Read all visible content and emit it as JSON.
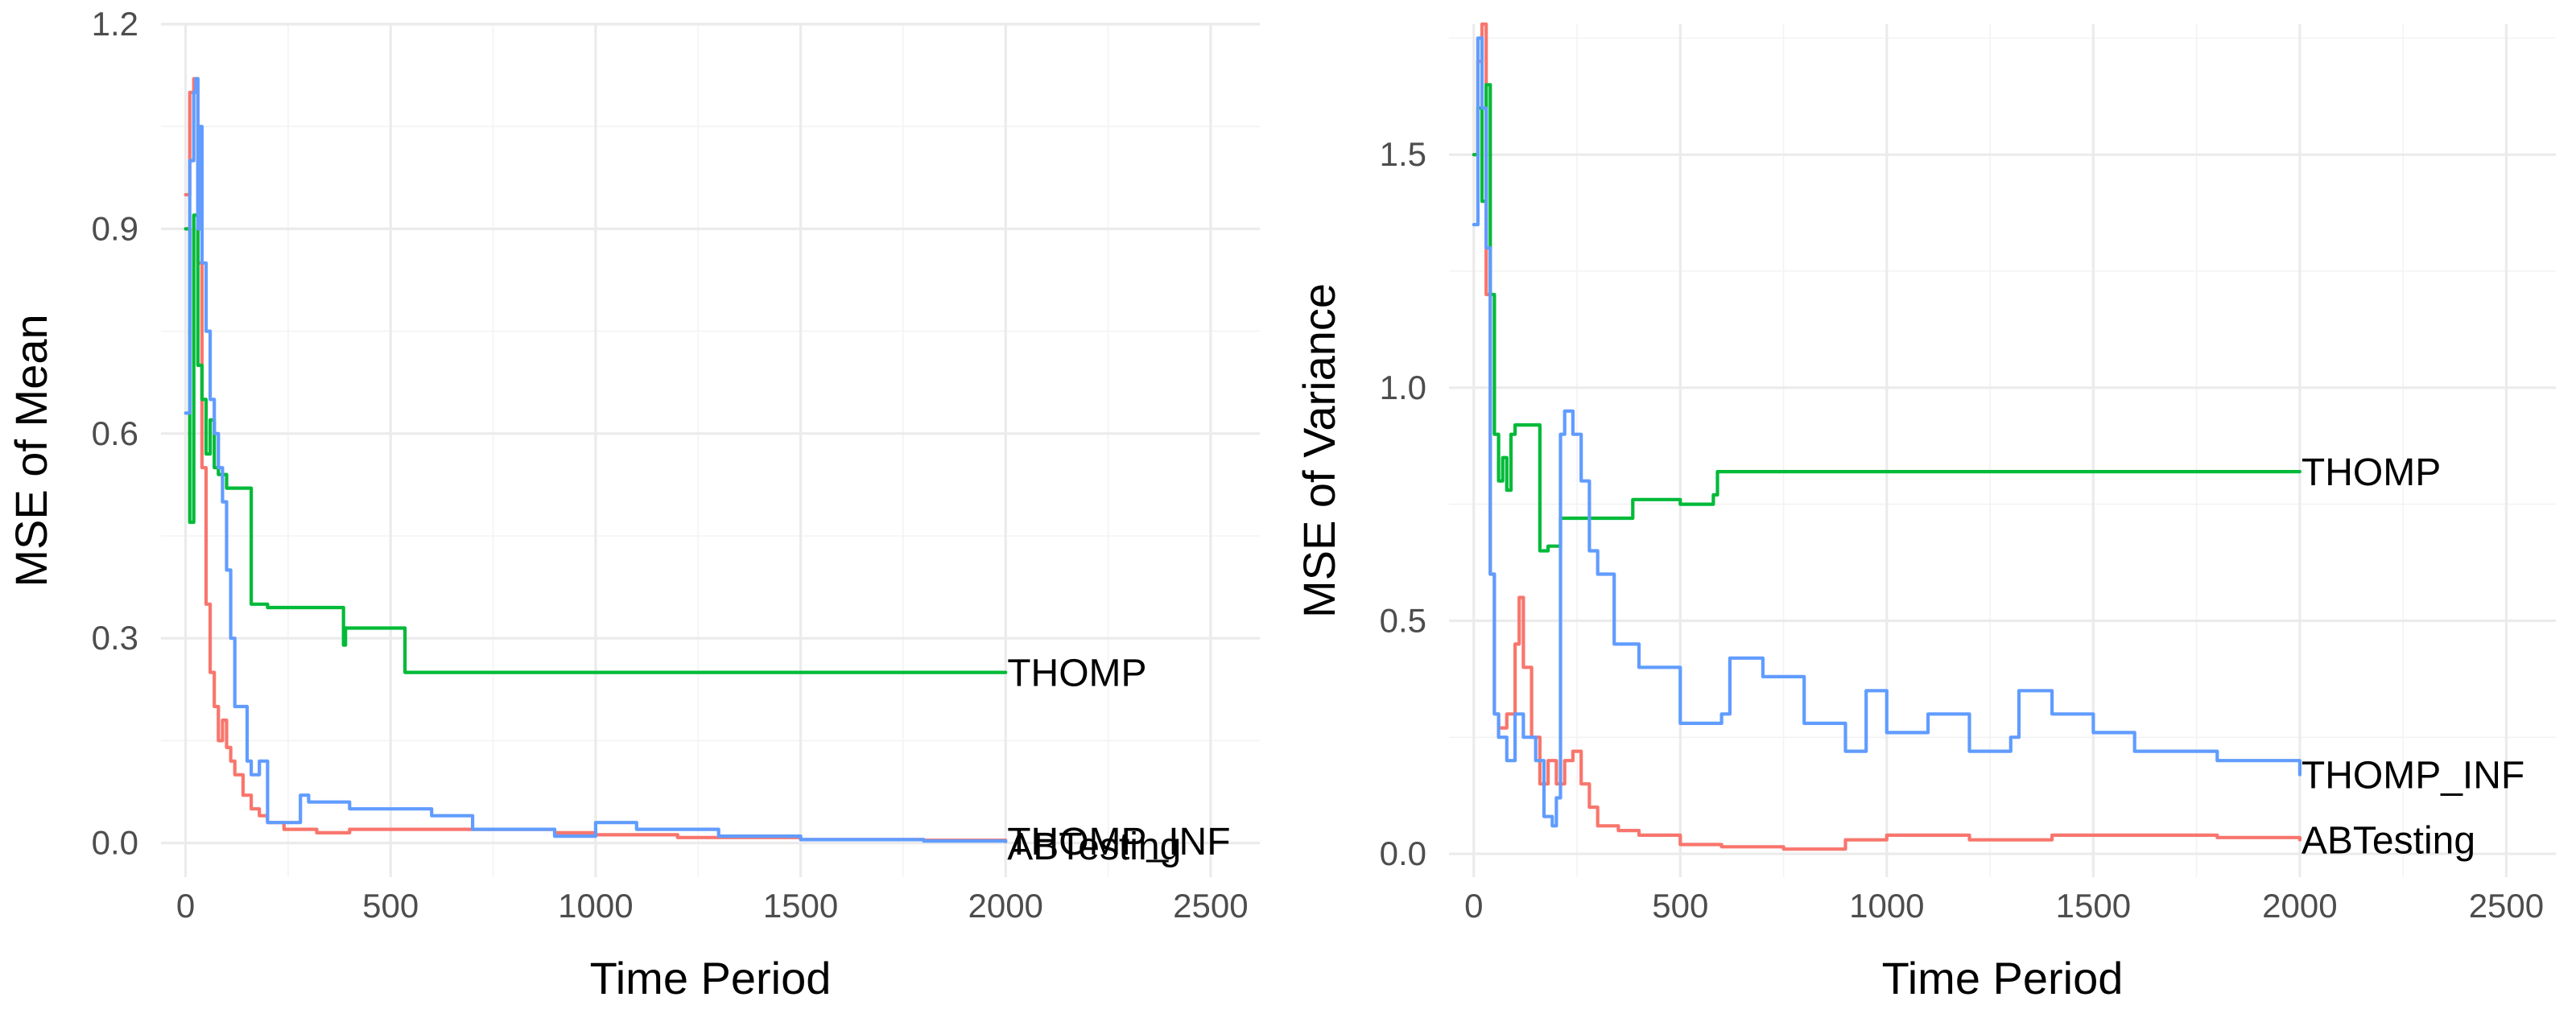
{
  "colors": {
    "ABTesting": "#f8766d",
    "THOMP": "#00ba38",
    "THOMP_INF": "#619cff"
  },
  "chart_data": [
    {
      "type": "line",
      "xlabel": "Time Period",
      "ylabel": "MSE of Mean",
      "xlim": [
        -60,
        2620
      ],
      "ylim": [
        -0.05,
        1.2
      ],
      "x_ticks": [
        0,
        500,
        1000,
        1500,
        2000,
        2500
      ],
      "y_ticks": [
        0.0,
        0.3,
        0.6,
        0.9,
        1.2
      ],
      "y_tick_labels": [
        "0.0",
        "0.3",
        "0.6",
        "0.9",
        "1.2"
      ],
      "x_tick_labels": [
        "0",
        "500",
        "1000",
        "1500",
        "2000",
        "2500"
      ],
      "grid": true,
      "legend": "none (direct labels at line ends)",
      "series": [
        {
          "name": "ABTesting",
          "x": [
            0,
            10,
            20,
            30,
            40,
            50,
            60,
            70,
            80,
            90,
            100,
            110,
            120,
            140,
            160,
            180,
            200,
            240,
            280,
            320,
            400,
            500,
            600,
            700,
            800,
            900,
            1000,
            1200,
            1500,
            1800,
            2000
          ],
          "y": [
            0.95,
            1.1,
            1.12,
            0.85,
            0.55,
            0.35,
            0.25,
            0.2,
            0.15,
            0.18,
            0.14,
            0.12,
            0.1,
            0.07,
            0.05,
            0.04,
            0.03,
            0.02,
            0.02,
            0.015,
            0.02,
            0.02,
            0.02,
            0.02,
            0.02,
            0.015,
            0.012,
            0.008,
            0.005,
            0.004,
            0.003
          ]
        },
        {
          "name": "THOMP",
          "x": [
            0,
            10,
            20,
            30,
            40,
            50,
            60,
            70,
            80,
            100,
            150,
            160,
            200,
            380,
            385,
            390,
            530,
            535,
            2000
          ],
          "y": [
            0.9,
            0.47,
            0.92,
            0.7,
            0.65,
            0.57,
            0.62,
            0.55,
            0.54,
            0.52,
            0.52,
            0.35,
            0.345,
            0.345,
            0.29,
            0.315,
            0.315,
            0.25,
            0.25
          ]
        },
        {
          "name": "THOMP_INF",
          "x": [
            0,
            10,
            20,
            25,
            30,
            35,
            40,
            50,
            60,
            70,
            80,
            90,
            100,
            110,
            120,
            150,
            160,
            180,
            200,
            280,
            300,
            400,
            600,
            700,
            900,
            1000,
            1100,
            1300,
            1500,
            1800,
            2000
          ],
          "y": [
            0.63,
            1.0,
            1.1,
            1.12,
            0.9,
            1.05,
            0.85,
            0.75,
            0.65,
            0.6,
            0.55,
            0.5,
            0.4,
            0.3,
            0.2,
            0.12,
            0.1,
            0.12,
            0.03,
            0.07,
            0.06,
            0.05,
            0.04,
            0.02,
            0.01,
            0.03,
            0.02,
            0.01,
            0.005,
            0.003,
            0.002
          ]
        }
      ],
      "end_labels": [
        {
          "series": "THOMP",
          "text": "THOMP",
          "x": 2000,
          "y": 0.25
        },
        {
          "series": "THOMP_INF",
          "text": "THOMP_INF",
          "x": 2000,
          "y": 0.003
        },
        {
          "series": "ABTesting",
          "text": "ABTesting",
          "x": 2000,
          "y": -0.004
        }
      ]
    },
    {
      "type": "line",
      "xlabel": "Time Period",
      "ylabel": "MSE of Variance",
      "xlim": [
        -60,
        2620
      ],
      "ylim": [
        -0.05,
        1.78
      ],
      "x_ticks": [
        0,
        500,
        1000,
        1500,
        2000,
        2500
      ],
      "y_ticks": [
        0.0,
        0.5,
        1.0,
        1.5
      ],
      "y_tick_labels": [
        "0.0",
        "0.5",
        "1.0",
        "1.5"
      ],
      "x_tick_labels": [
        "0",
        "500",
        "1000",
        "1500",
        "2000",
        "2500"
      ],
      "grid": true,
      "legend": "none (direct labels at line ends)",
      "series": [
        {
          "name": "ABTesting",
          "x": [
            0,
            10,
            20,
            30,
            40,
            50,
            60,
            80,
            100,
            110,
            120,
            140,
            160,
            180,
            200,
            220,
            240,
            260,
            280,
            300,
            350,
            400,
            500,
            600,
            750,
            900,
            1000,
            1200,
            1400,
            1600,
            1800,
            2000
          ],
          "y": [
            1.5,
            1.7,
            1.78,
            1.2,
            0.6,
            0.3,
            0.27,
            0.3,
            0.45,
            0.55,
            0.4,
            0.25,
            0.15,
            0.2,
            0.15,
            0.2,
            0.22,
            0.15,
            0.1,
            0.06,
            0.05,
            0.04,
            0.02,
            0.015,
            0.01,
            0.03,
            0.04,
            0.03,
            0.04,
            0.04,
            0.035,
            0.03
          ]
        },
        {
          "name": "THOMP",
          "x": [
            0,
            10,
            20,
            30,
            40,
            50,
            60,
            70,
            80,
            90,
            100,
            150,
            160,
            180,
            200,
            210,
            250,
            380,
            385,
            450,
            500,
            580,
            590,
            2000
          ],
          "y": [
            1.5,
            1.6,
            1.4,
            1.65,
            1.2,
            0.9,
            0.8,
            0.85,
            0.78,
            0.9,
            0.92,
            0.92,
            0.65,
            0.66,
            0.66,
            0.72,
            0.72,
            0.72,
            0.76,
            0.76,
            0.75,
            0.77,
            0.82,
            0.82
          ]
        },
        {
          "name": "THOMP_INF",
          "x": [
            0,
            10,
            20,
            30,
            40,
            50,
            60,
            80,
            100,
            120,
            150,
            170,
            190,
            200,
            210,
            220,
            240,
            260,
            280,
            300,
            340,
            400,
            500,
            600,
            620,
            700,
            800,
            900,
            950,
            1000,
            1100,
            1200,
            1300,
            1320,
            1400,
            1500,
            1600,
            1800,
            2000
          ],
          "y": [
            1.35,
            1.75,
            1.6,
            1.3,
            0.6,
            0.3,
            0.25,
            0.2,
            0.3,
            0.25,
            0.2,
            0.08,
            0.06,
            0.12,
            0.9,
            0.95,
            0.9,
            0.8,
            0.65,
            0.6,
            0.45,
            0.4,
            0.28,
            0.3,
            0.42,
            0.38,
            0.28,
            0.22,
            0.35,
            0.26,
            0.3,
            0.22,
            0.25,
            0.35,
            0.3,
            0.26,
            0.22,
            0.2,
            0.17
          ]
        }
      ],
      "end_labels": [
        {
          "series": "THOMP",
          "text": "THOMP",
          "x": 2000,
          "y": 0.82
        },
        {
          "series": "THOMP_INF",
          "text": "THOMP_INF",
          "x": 2000,
          "y": 0.17
        },
        {
          "series": "ABTesting",
          "text": "ABTesting",
          "x": 2000,
          "y": 0.03
        }
      ]
    }
  ]
}
